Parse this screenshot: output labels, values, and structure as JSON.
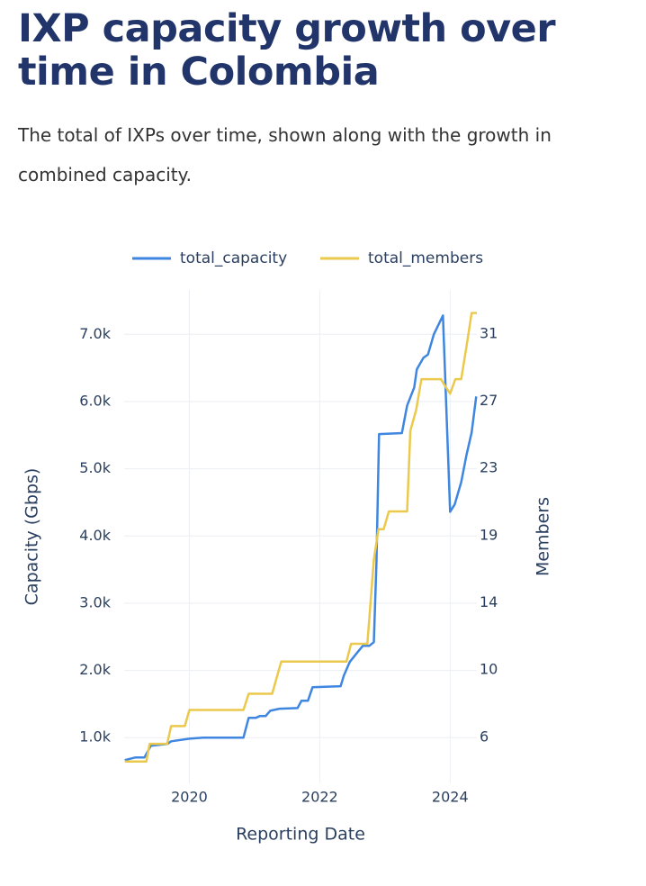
{
  "chart_data": {
    "type": "line",
    "title": "IXP capacity growth over time in Colombia",
    "subtitle": "The total of IXPs over time, shown along with the growth in combined capacity.",
    "x_label": "Reporting Date",
    "y_label": "Capacity (Gbps)",
    "y2_label": "Members",
    "xlim": [
      2019,
      2024.41
    ],
    "xticks": [
      2020,
      2022,
      2024
    ],
    "ylim": [
      320,
      7660
    ],
    "yticks": [
      {
        "value": 1000,
        "label": "1.0k"
      },
      {
        "value": 2000,
        "label": "2.0k"
      },
      {
        "value": 3000,
        "label": "3.0k"
      },
      {
        "value": 4000,
        "label": "4.0k"
      },
      {
        "value": 5000,
        "label": "5.0k"
      },
      {
        "value": 6000,
        "label": "6.0k"
      },
      {
        "value": 7000,
        "label": "7.0k"
      }
    ],
    "y2lim": [
      3.15,
      33.73
    ],
    "y2ticks": [
      6,
      {
        "value": 10.17,
        "label": "10"
      },
      {
        "value": 14.33,
        "label": "14"
      },
      {
        "value": 18.5,
        "label": "19"
      },
      {
        "value": 22.67,
        "label": "23"
      },
      {
        "value": 26.83,
        "label": "27"
      },
      31
    ],
    "grid": true,
    "series": [
      {
        "name": "total_capacity",
        "color": "#3f86e0",
        "x": [
          2019.01,
          2019.17,
          2019.31,
          2019.41,
          2019.66,
          2019.72,
          2020.0,
          2020.21,
          2020.83,
          2020.91,
          2021.02,
          2021.08,
          2021.17,
          2021.24,
          2021.38,
          2021.66,
          2021.72,
          2021.82,
          2021.89,
          2022.32,
          2022.37,
          2022.46,
          2022.57,
          2022.66,
          2022.76,
          2022.83,
          2022.87,
          2022.91,
          2023.26,
          2023.34,
          2023.45,
          2023.49,
          2023.59,
          2023.66,
          2023.75,
          2023.89,
          2024.0,
          2024.07,
          2024.17,
          2024.25,
          2024.33,
          2024.4
        ],
        "values": [
          665,
          705,
          705,
          880,
          905,
          945,
          985,
          1000,
          1000,
          1295,
          1295,
          1320,
          1320,
          1400,
          1430,
          1440,
          1550,
          1550,
          1750,
          1765,
          1925,
          2125,
          2260,
          2365,
          2365,
          2420,
          3600,
          5515,
          5530,
          5940,
          6210,
          6480,
          6650,
          6700,
          7000,
          7280,
          4360,
          4470,
          4800,
          5200,
          5540,
          6075
        ]
      },
      {
        "name": "total_members",
        "color": "#ebc94c",
        "axis": "y2",
        "x": [
          2019.01,
          2019.34,
          2019.39,
          2019.66,
          2019.72,
          2019.93,
          2020.0,
          2020.83,
          2020.91,
          2021.27,
          2021.41,
          2022.41,
          2022.48,
          2022.73,
          2022.83,
          2022.9,
          2022.98,
          2023.06,
          2023.34,
          2023.39,
          2023.48,
          2023.56,
          2023.86,
          2023.92,
          2024.0,
          2024.08,
          2024.17,
          2024.25,
          2024.33,
          2024.41
        ],
        "values": [
          4.5,
          4.5,
          5.6,
          5.6,
          6.7,
          6.7,
          7.7,
          7.7,
          8.7,
          8.7,
          10.7,
          10.7,
          11.8,
          11.8,
          17.0,
          18.9,
          18.9,
          20.0,
          20.0,
          25.0,
          26.3,
          28.2,
          28.2,
          27.8,
          27.3,
          28.2,
          28.2,
          30.2,
          32.3,
          32.3
        ]
      }
    ]
  }
}
